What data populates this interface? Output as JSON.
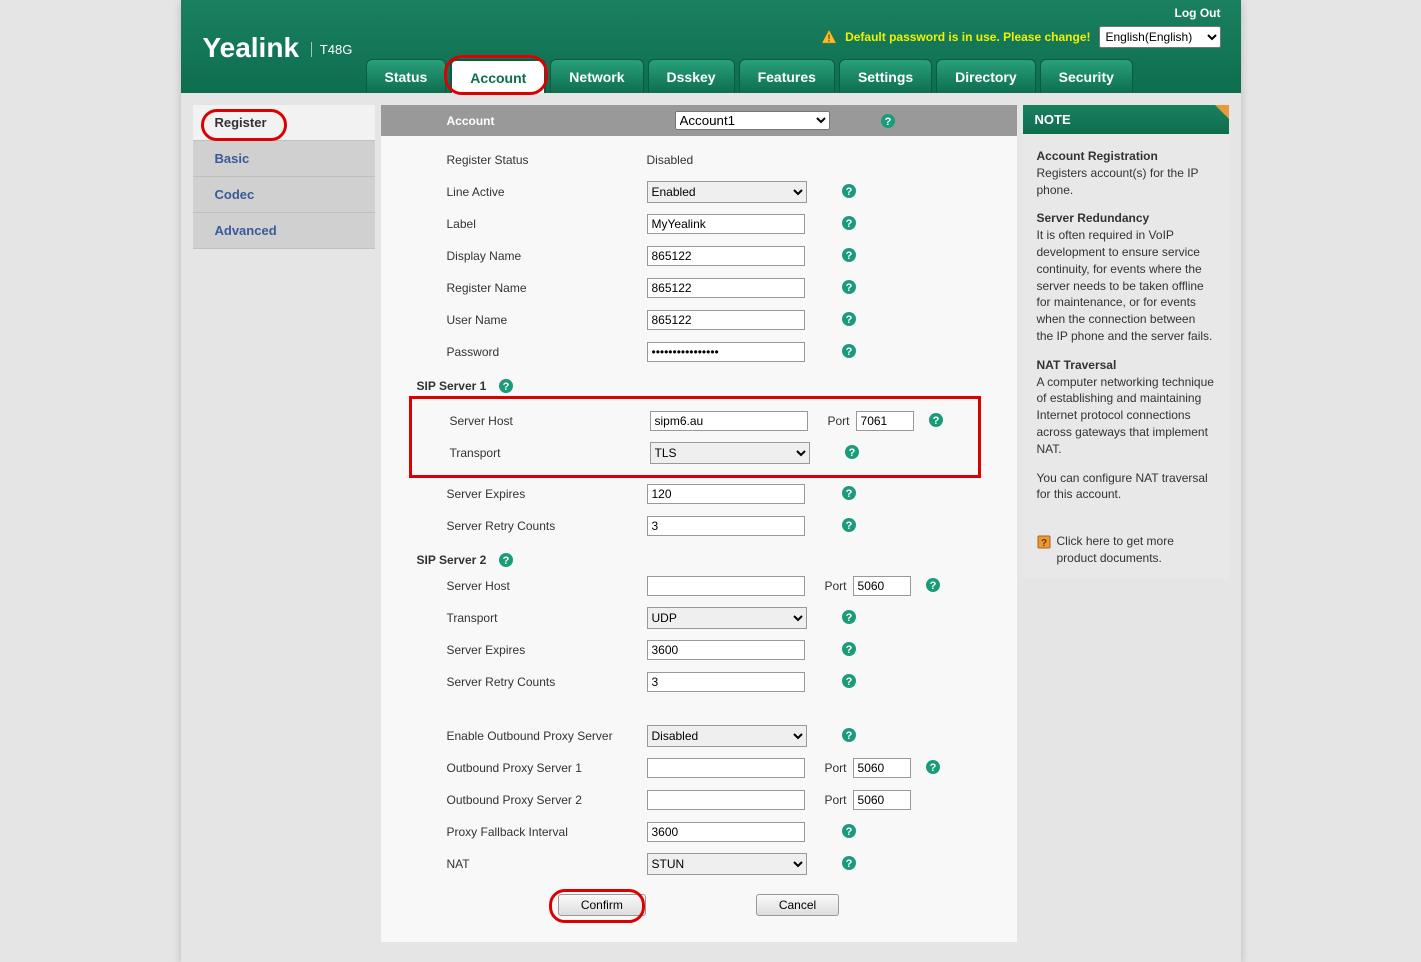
{
  "colors": {
    "header_bg": "#0d6e4f",
    "header_top": "#1a8060",
    "warn_text": "#f1f100",
    "red_highlight": "#d00000",
    "help_icon": "#1a9b7a",
    "sidebar_link": "#3a5a9a",
    "note_corner": "#e89a3a",
    "page_bg": "#e5e5e5"
  },
  "header": {
    "logo": "Yealink",
    "model": "T48G",
    "logout": "Log Out",
    "warning": "Default password is in use. Please change!",
    "lang_selected": "English(English)"
  },
  "tabs": [
    {
      "label": "Status",
      "active": false
    },
    {
      "label": "Account",
      "active": true
    },
    {
      "label": "Network",
      "active": false
    },
    {
      "label": "Dsskey",
      "active": false
    },
    {
      "label": "Features",
      "active": false
    },
    {
      "label": "Settings",
      "active": false
    },
    {
      "label": "Directory",
      "active": false
    },
    {
      "label": "Security",
      "active": false
    }
  ],
  "sidebar": [
    {
      "label": "Register",
      "active": true,
      "circled": true
    },
    {
      "label": "Basic",
      "active": false
    },
    {
      "label": "Codec",
      "active": false
    },
    {
      "label": "Advanced",
      "active": false
    }
  ],
  "account_row": {
    "label": "Account",
    "value": "Account1"
  },
  "fields": {
    "register_status": {
      "label": "Register Status",
      "value": "Disabled"
    },
    "line_active": {
      "label": "Line Active",
      "value": "Enabled"
    },
    "label_f": {
      "label": "Label",
      "value": "MyYealink"
    },
    "display_name": {
      "label": "Display Name",
      "value": "865122"
    },
    "register_name": {
      "label": "Register Name",
      "value": "865122"
    },
    "user_name": {
      "label": "User Name",
      "value": "865122"
    },
    "password": {
      "label": "Password",
      "value": "••••••••••••••••"
    }
  },
  "sip1": {
    "title": "SIP Server 1",
    "host_label": "Server Host",
    "host": "sipm6.au",
    "port_label": "Port",
    "port": "7061",
    "transport_label": "Transport",
    "transport": "TLS",
    "expires_label": "Server Expires",
    "expires": "120",
    "retry_label": "Server Retry Counts",
    "retry": "3"
  },
  "sip2": {
    "title": "SIP Server 2",
    "host_label": "Server Host",
    "host": "",
    "port_label": "Port",
    "port": "5060",
    "transport_label": "Transport",
    "transport": "UDP",
    "expires_label": "Server Expires",
    "expires": "3600",
    "retry_label": "Server Retry Counts",
    "retry": "3"
  },
  "outbound": {
    "enable_label": "Enable Outbound Proxy Server",
    "enable": "Disabled",
    "s1_label": "Outbound Proxy Server 1",
    "s1": "",
    "s1_port_label": "Port",
    "s1_port": "5060",
    "s2_label": "Outbound Proxy Server 2",
    "s2": "",
    "s2_port_label": "Port",
    "s2_port": "5060",
    "fallback_label": "Proxy Fallback Interval",
    "fallback": "3600",
    "nat_label": "NAT",
    "nat": "STUN"
  },
  "buttons": {
    "confirm": "Confirm",
    "cancel": "Cancel"
  },
  "note": {
    "title": "NOTE",
    "s1_title": "Account Registration",
    "s1_body": "Registers account(s) for the IP phone.",
    "s2_title": "Server Redundancy",
    "s2_body": "It is often required in VoIP development to ensure service continuity, for events where the server needs to be taken offline for maintenance, or for events when the connection between the IP phone and the server fails.",
    "s3_title": "NAT Traversal",
    "s3_body": "A computer networking technique of establishing and maintaining Internet protocol connections across gateways that implement NAT.",
    "s4_body": "You can configure NAT traversal for this account.",
    "doc_link": "Click here to get more product documents."
  }
}
